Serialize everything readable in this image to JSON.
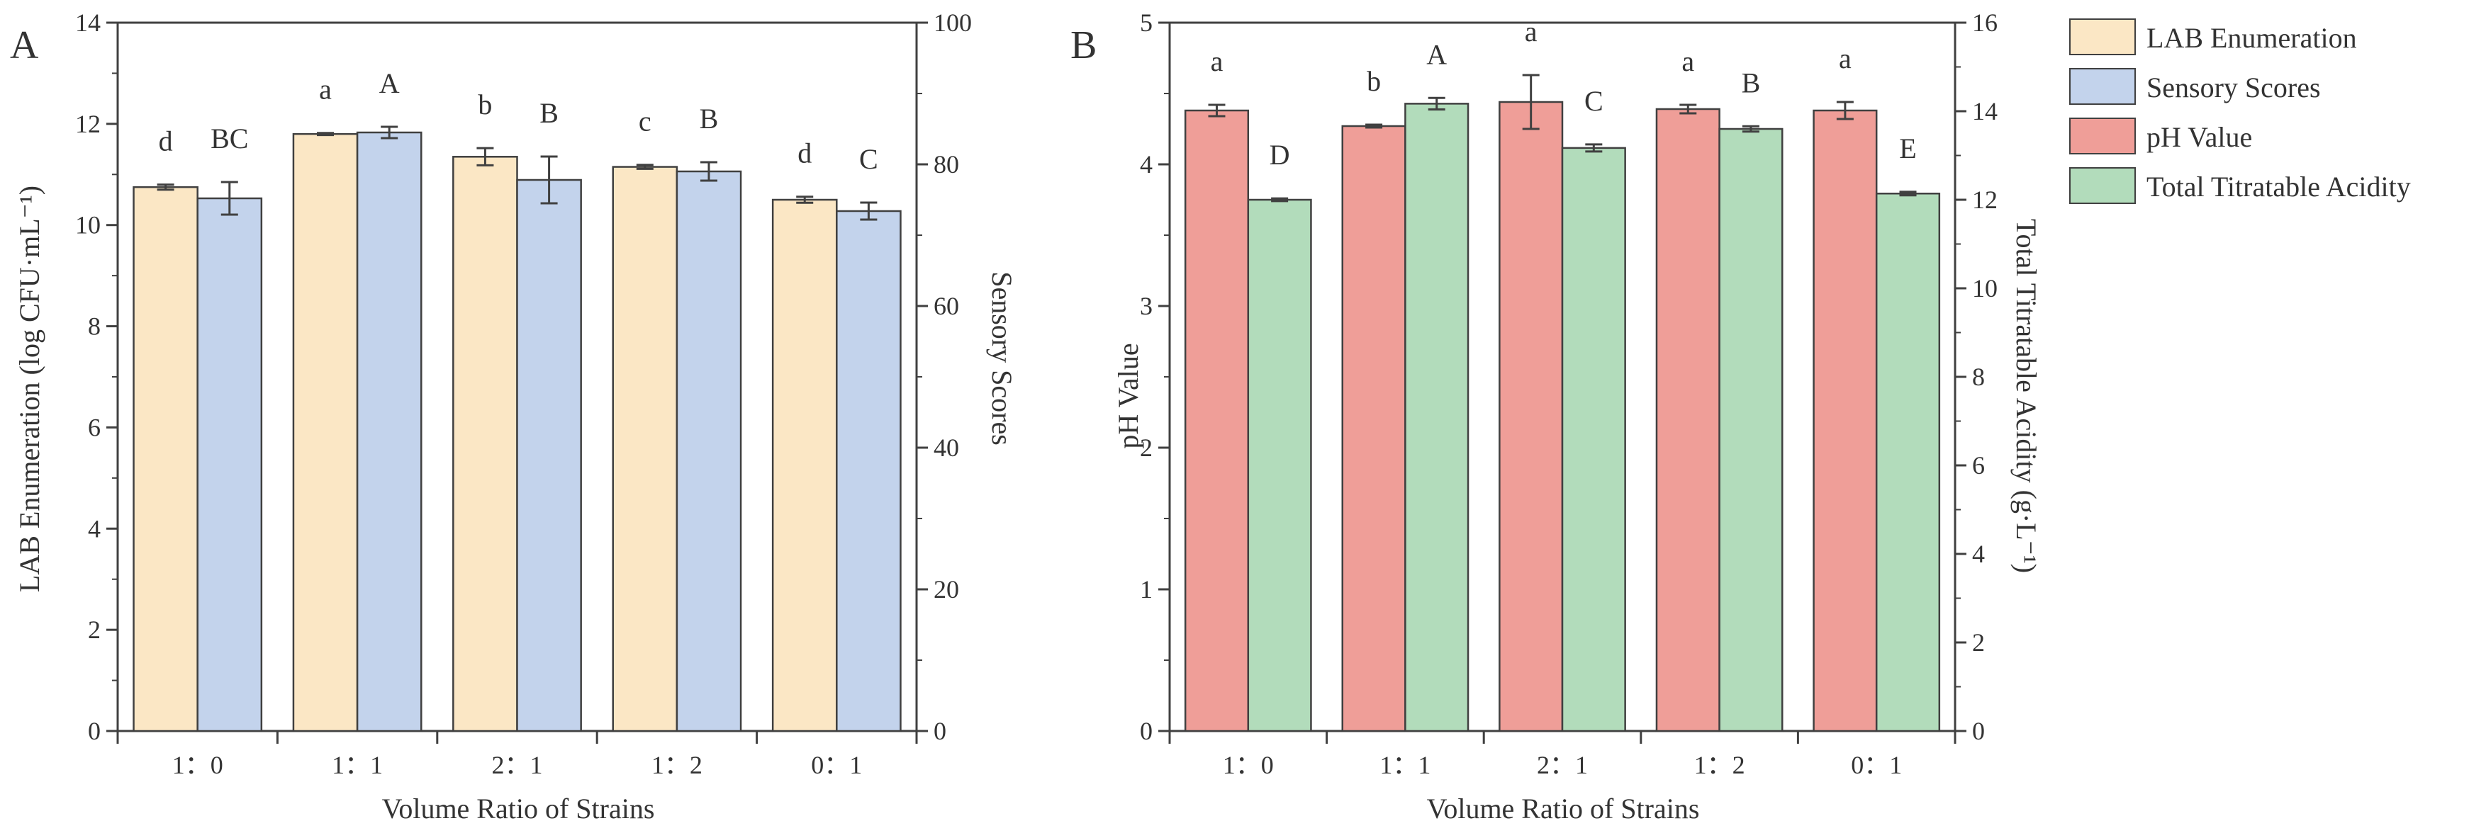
{
  "colors": {
    "lab": "#fbe7c5",
    "sensory": "#c3d3ec",
    "ph": "#ef9e98",
    "tta": "#b2dcbb",
    "stroke": "#404040"
  },
  "legend": [
    {
      "label": "LAB Enumeration",
      "color": "#fbe7c5"
    },
    {
      "label": "Sensory Scores",
      "color": "#c3d3ec"
    },
    {
      "label": "pH Value",
      "color": "#ef9e98"
    },
    {
      "label": "Total Titratable Acidity",
      "color": "#b2dcbb"
    }
  ],
  "chart_data": [
    {
      "type": "bar",
      "panel": "A",
      "xlabel": "Volume Ratio of Strains",
      "categories": [
        "1：0",
        "1：1",
        "2：1",
        "1：2",
        "0：1"
      ],
      "left_axis": {
        "label": "LAB Enumeration (log CFU·mL⁻¹)",
        "ylim": [
          0,
          14
        ],
        "ticks": [
          0,
          2,
          4,
          6,
          8,
          10,
          12,
          14
        ]
      },
      "right_axis": {
        "label": "Sensory Scores",
        "ylim": [
          0,
          100
        ],
        "ticks": [
          0,
          20,
          40,
          60,
          80,
          100
        ]
      },
      "series": [
        {
          "name": "LAB Enumeration",
          "axis": "left",
          "color": "#fbe7c5",
          "values": [
            10.75,
            11.8,
            11.35,
            11.15,
            10.5
          ],
          "errors": [
            0.05,
            0.02,
            0.17,
            0.04,
            0.06
          ],
          "letters": [
            "d",
            "a",
            "b",
            "c",
            "d"
          ]
        },
        {
          "name": "Sensory Scores",
          "axis": "right",
          "color": "#c3d3ec",
          "values": [
            75.2,
            84.5,
            77.8,
            79.0,
            73.4
          ],
          "errors": [
            2.3,
            0.8,
            3.3,
            1.3,
            1.2
          ],
          "letters": [
            "BC",
            "A",
            "B",
            "B",
            "C"
          ]
        }
      ]
    },
    {
      "type": "bar",
      "panel": "B",
      "xlabel": "Volume Ratio of Strains",
      "categories": [
        "1：0",
        "1：1",
        "2：1",
        "1：2",
        "0：1"
      ],
      "left_axis": {
        "label": "pH Value",
        "ylim": [
          0,
          5
        ],
        "ticks": [
          0,
          1,
          2,
          3,
          4,
          5
        ]
      },
      "right_axis": {
        "label": "Total Titratable Acidity (g·L⁻¹)",
        "ylim": [
          0,
          16
        ],
        "ticks": [
          0,
          2,
          4,
          6,
          8,
          10,
          12,
          14,
          16
        ]
      },
      "series": [
        {
          "name": "pH Value",
          "axis": "left",
          "color": "#ef9e98",
          "values": [
            4.38,
            4.27,
            4.44,
            4.39,
            4.38
          ],
          "errors": [
            0.04,
            0.01,
            0.19,
            0.03,
            0.06
          ],
          "letters": [
            "a",
            "b",
            "a",
            "a",
            "a"
          ]
        },
        {
          "name": "Total Titratable Acidity",
          "axis": "right",
          "color": "#b2dcbb",
          "values": [
            12.0,
            14.17,
            13.17,
            13.6,
            12.14
          ],
          "errors": [
            0.03,
            0.13,
            0.08,
            0.06,
            0.04
          ],
          "letters": [
            "D",
            "A",
            "C",
            "B",
            "E"
          ]
        }
      ]
    }
  ]
}
